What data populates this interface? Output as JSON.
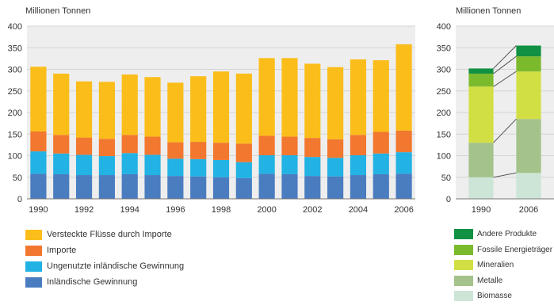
{
  "chart_data": [
    {
      "type": "bar",
      "stacked": true,
      "ylabel": "Millionen Tonnen",
      "ylim": [
        0,
        400
      ],
      "yticks": [
        0,
        50,
        100,
        150,
        200,
        250,
        300,
        350,
        400
      ],
      "categories": [
        "1990",
        "1991",
        "1992",
        "1993",
        "1994",
        "1995",
        "1996",
        "1997",
        "1998",
        "1999",
        "2000",
        "2001",
        "2002",
        "2003",
        "2004",
        "2005",
        "2006"
      ],
      "x_tick_labels": [
        "1990",
        "",
        "1992",
        "",
        "1994",
        "",
        "1996",
        "",
        "1998",
        "",
        "2000",
        "",
        "2002",
        "",
        "2004",
        "",
        "2006"
      ],
      "grid": true,
      "legend_position": "bottom",
      "series": [
        {
          "name": "Inländische Gewinnung",
          "color": "#4a7cc0",
          "values": [
            58,
            57,
            55,
            55,
            57,
            55,
            53,
            52,
            50,
            48,
            58,
            57,
            53,
            52,
            55,
            57,
            58
          ]
        },
        {
          "name": "Ungenutzte inländische Gewinnung",
          "color": "#22b2e4",
          "values": [
            52,
            48,
            47,
            44,
            49,
            47,
            40,
            40,
            40,
            37,
            43,
            44,
            44,
            43,
            46,
            48,
            50
          ]
        },
        {
          "name": "Importe",
          "color": "#f2772f",
          "values": [
            46,
            43,
            40,
            40,
            42,
            42,
            38,
            40,
            40,
            43,
            45,
            43,
            44,
            43,
            47,
            50,
            50
          ]
        },
        {
          "name": "Versteckte Flüsse durch Importe",
          "color": "#fbbd19",
          "values": [
            150,
            142,
            130,
            132,
            140,
            138,
            138,
            152,
            165,
            162,
            180,
            182,
            172,
            167,
            175,
            166,
            200
          ]
        }
      ]
    },
    {
      "type": "bar",
      "stacked": true,
      "ylabel": "Millionen Tonnen",
      "ylim": [
        0,
        400
      ],
      "yticks": [
        0,
        50,
        100,
        150,
        200,
        250,
        300,
        350,
        400
      ],
      "categories": [
        "1990",
        "2006"
      ],
      "grid": true,
      "legend_position": "bottom",
      "series": [
        {
          "name": "Biomasse",
          "color": "#cce5d7",
          "values": [
            50,
            60
          ]
        },
        {
          "name": "Metalle",
          "color": "#a3c38a",
          "values": [
            80,
            125
          ]
        },
        {
          "name": "Mineralien",
          "color": "#d2df44",
          "values": [
            130,
            110
          ]
        },
        {
          "name": "Fossile Energieträger",
          "color": "#7cba2d",
          "values": [
            30,
            35
          ]
        },
        {
          "name": "Andere Produkte",
          "color": "#119143",
          "values": [
            12,
            25
          ]
        }
      ]
    }
  ]
}
